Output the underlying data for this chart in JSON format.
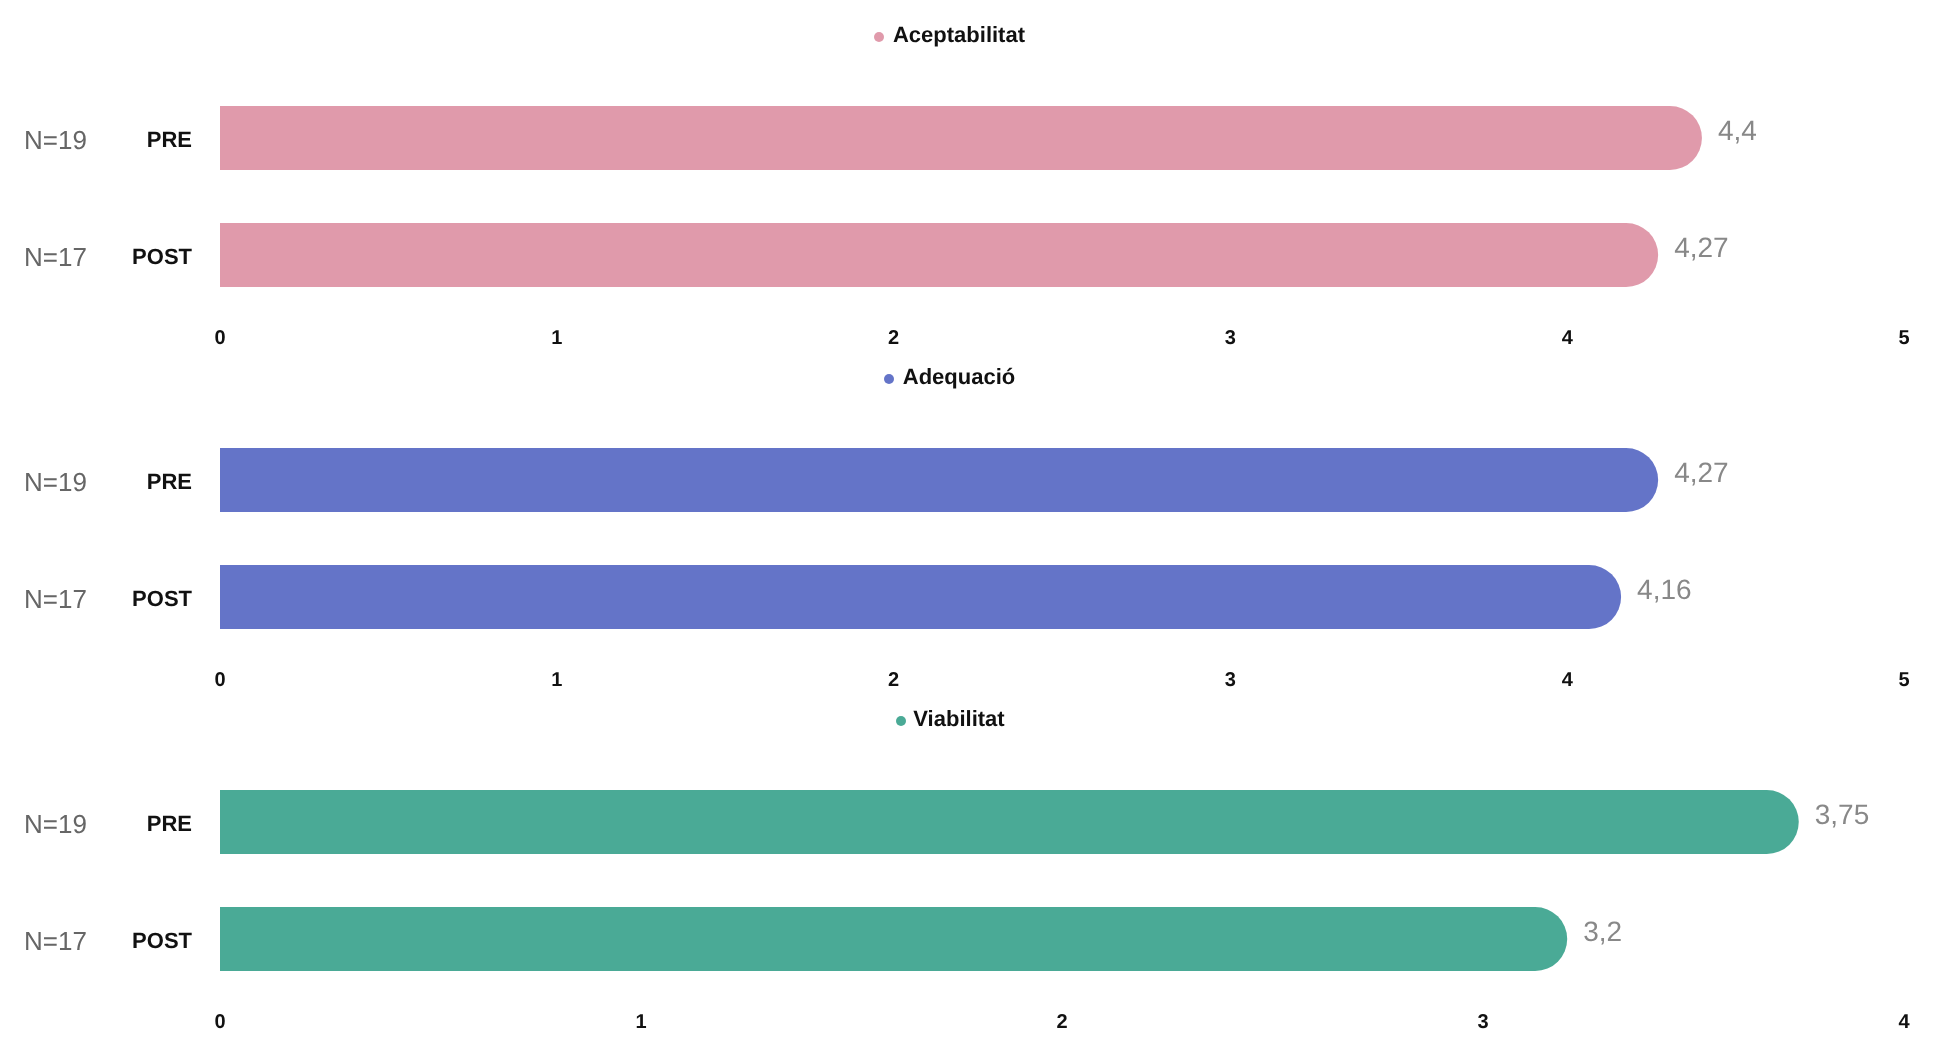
{
  "chart_data": [
    {
      "type": "bar",
      "orientation": "horizontal",
      "categories": [
        "PRE",
        "POST"
      ],
      "series": [
        {
          "name": "Aceptabilitat",
          "color": "#e09aab",
          "values": [
            4.4,
            4.27
          ],
          "value_labels": [
            "4,4",
            "4,27"
          ]
        }
      ],
      "xlim": [
        0,
        5
      ],
      "xticks": [
        0,
        1,
        2,
        3,
        4,
        5
      ],
      "legend": "top",
      "grid": false,
      "annotations": [
        "N=19",
        "N=17"
      ]
    },
    {
      "type": "bar",
      "orientation": "horizontal",
      "categories": [
        "PRE",
        "POST"
      ],
      "series": [
        {
          "name": "Adequació",
          "color": "#6474c8",
          "values": [
            4.27,
            4.16
          ],
          "value_labels": [
            "4,27",
            "4,16"
          ]
        }
      ],
      "xlim": [
        0,
        5
      ],
      "xticks": [
        0,
        1,
        2,
        3,
        4,
        5
      ],
      "legend": "top",
      "grid": false,
      "annotations": [
        "N=19",
        "N=17"
      ]
    },
    {
      "type": "bar",
      "orientation": "horizontal",
      "categories": [
        "PRE",
        "POST"
      ],
      "series": [
        {
          "name": "Viabilitat",
          "color": "#4aaa96",
          "values": [
            3.75,
            3.2
          ],
          "value_labels": [
            "3,75",
            "3,2"
          ]
        }
      ],
      "xlim": [
        0,
        4
      ],
      "xticks": [
        0,
        1,
        2,
        3,
        4
      ],
      "legend": "top",
      "grid": false,
      "annotations": [
        "N=19",
        "N=17"
      ]
    }
  ]
}
